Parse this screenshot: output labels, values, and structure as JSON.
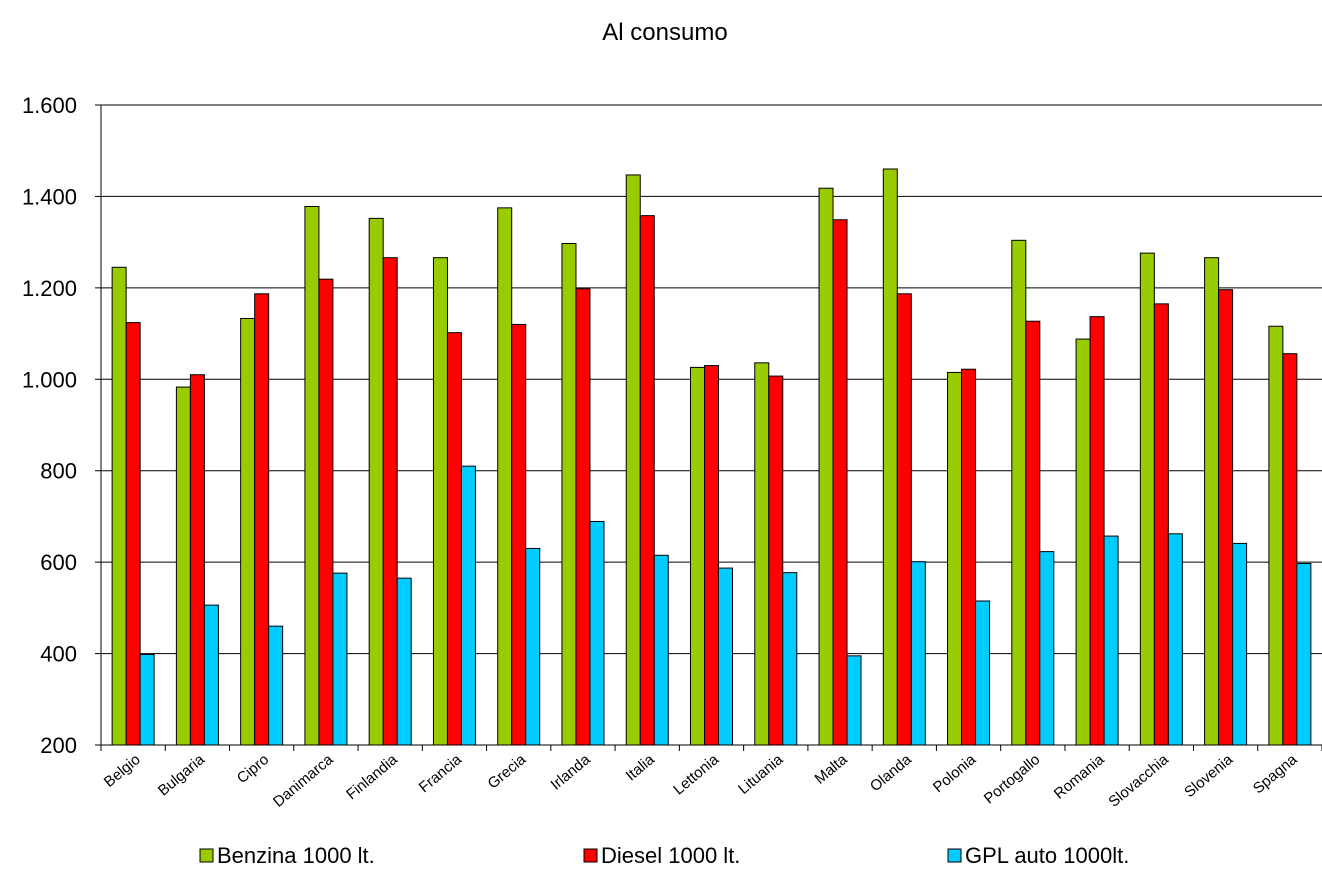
{
  "chart_data": {
    "type": "bar",
    "title": "Al consumo",
    "xlabel": "",
    "ylabel": "",
    "ylim": [
      200,
      1600
    ],
    "yticks": [
      200,
      400,
      600,
      800,
      1000,
      1200,
      1400,
      1600
    ],
    "ytick_labels": [
      "200",
      "400",
      "600",
      "800",
      "1.000",
      "1.200",
      "1.400",
      "1.600"
    ],
    "grid": true,
    "legend_position": "bottom",
    "categories": [
      "Belgio",
      "Bulgaria",
      "Cipro",
      "Danimarca",
      "Finlandia",
      "Francia",
      "Grecia",
      "Irlanda",
      "Italia",
      "Lettonia",
      "Lituania",
      "Malta",
      "Olanda",
      "Polonia",
      "Portogallo",
      "Romania",
      "Slovacchia",
      "Slovenia",
      "Spagna"
    ],
    "series": [
      {
        "name": "Benzina 1000 lt.",
        "color": "#99cc00",
        "values": [
          1245,
          983,
          1133,
          1378,
          1352,
          1266,
          1375,
          1297,
          1447,
          1026,
          1036,
          1418,
          1460,
          1015,
          1304,
          1088,
          1276,
          1266,
          1116
        ]
      },
      {
        "name": "Diesel 1000 lt.",
        "color": "#ff0000",
        "values": [
          1124,
          1010,
          1187,
          1219,
          1266,
          1102,
          1120,
          1198,
          1358,
          1030,
          1007,
          1349,
          1187,
          1022,
          1127,
          1137,
          1165,
          1196,
          1056
        ]
      },
      {
        "name": "GPL auto 1000lt.",
        "color": "#00ccff",
        "values": [
          398,
          506,
          460,
          576,
          565,
          810,
          630,
          689,
          615,
          587,
          577,
          395,
          601,
          515,
          623,
          657,
          662,
          641,
          597
        ]
      }
    ]
  }
}
